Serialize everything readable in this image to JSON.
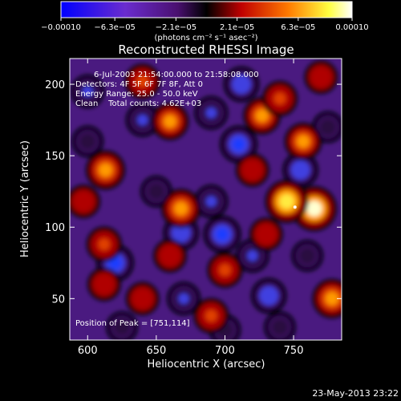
{
  "chart_data": {
    "type": "heatmap",
    "title": "Reconstructed RHESSI Image",
    "xlabel": "Heliocentric X (arcsec)",
    "ylabel": "Heliocentric Y (arcsec)",
    "xlim": [
      587,
      785
    ],
    "ylim": [
      21,
      218
    ],
    "xticks": [
      600,
      650,
      700,
      750
    ],
    "yticks": [
      50,
      100,
      150,
      200
    ],
    "colorbar": {
      "range": [
        -0.0001,
        0.0001
      ],
      "tick_values": [
        -0.0001,
        -6.3e-05,
        -2.1e-05,
        2.1e-05,
        6.3e-05,
        0.0001
      ],
      "tick_labels": [
        "−0.00010",
        "−6.3e−05",
        "−2.1e−05",
        "2.1e−05",
        "6.3e−05",
        "0.00010"
      ],
      "units": "(photons cm⁻² s⁻¹ asec⁻²)",
      "colors": [
        "#0000ff",
        "#7a1fa0",
        "#000000",
        "#c00000",
        "#ff8000",
        "#ffff60",
        "#ffffff"
      ]
    },
    "info_lines": [
      "6-Jul-2003 21:54:00.000 to 21:58:08.000",
      "Detectors: 4F 5F 6F 7F 8F, Att 0",
      "Energy Range: 25.0 - 50.0 keV",
      "Clean    Total counts: 4.62E+03"
    ],
    "peak_label": "Position of Peak = [751,114]",
    "peak_position": [
      751,
      114
    ],
    "bright_sources": [
      {
        "x": 765,
        "y": 113,
        "value": 0.0001
      },
      {
        "x": 745,
        "y": 118,
        "value": 9e-05
      },
      {
        "x": 668,
        "y": 113,
        "value": 7e-05
      },
      {
        "x": 613,
        "y": 140,
        "value": 7e-05
      },
      {
        "x": 778,
        "y": 50,
        "value": 7e-05
      },
      {
        "x": 757,
        "y": 160,
        "value": 6e-05
      },
      {
        "x": 727,
        "y": 178,
        "value": 6e-05
      },
      {
        "x": 660,
        "y": 174,
        "value": 6e-05
      },
      {
        "x": 700,
        "y": 70,
        "value": 5e-05
      },
      {
        "x": 740,
        "y": 190,
        "value": 5e-05
      },
      {
        "x": 612,
        "y": 88,
        "value": 5e-05
      },
      {
        "x": 690,
        "y": 38,
        "value": 5e-05
      },
      {
        "x": 640,
        "y": 202,
        "value": 5e-05
      },
      {
        "x": 720,
        "y": 140,
        "value": 4e-05
      },
      {
        "x": 640,
        "y": 50,
        "value": 4e-05
      },
      {
        "x": 770,
        "y": 205,
        "value": 4e-05
      },
      {
        "x": 597,
        "y": 118,
        "value": 4e-05
      },
      {
        "x": 612,
        "y": 60,
        "value": 4e-05
      },
      {
        "x": 660,
        "y": 80,
        "value": 4e-05
      },
      {
        "x": 730,
        "y": 95,
        "value": 4e-05
      }
    ],
    "dim_sources": [
      {
        "x": 710,
        "y": 158,
        "value": -6e-05
      },
      {
        "x": 698,
        "y": 95,
        "value": -6e-05
      },
      {
        "x": 620,
        "y": 75,
        "value": -6e-05
      },
      {
        "x": 668,
        "y": 96,
        "value": -5e-05
      },
      {
        "x": 712,
        "y": 200,
        "value": -5e-05
      },
      {
        "x": 755,
        "y": 140,
        "value": -5e-05
      },
      {
        "x": 732,
        "y": 52,
        "value": -5e-05
      },
      {
        "x": 690,
        "y": 118,
        "value": -4e-05
      },
      {
        "x": 640,
        "y": 175,
        "value": -4e-05
      },
      {
        "x": 670,
        "y": 50,
        "value": -4e-05
      },
      {
        "x": 720,
        "y": 80,
        "value": -4e-05
      },
      {
        "x": 600,
        "y": 195,
        "value": -4e-05
      },
      {
        "x": 690,
        "y": 180,
        "value": -4e-05
      },
      {
        "x": 700,
        "y": 28,
        "value": -3e-05
      },
      {
        "x": 650,
        "y": 125,
        "value": -3e-05
      },
      {
        "x": 600,
        "y": 160,
        "value": -3e-05
      },
      {
        "x": 760,
        "y": 80,
        "value": -3e-05
      },
      {
        "x": 740,
        "y": 30,
        "value": -3e-05
      },
      {
        "x": 625,
        "y": 30,
        "value": -3e-05
      },
      {
        "x": 775,
        "y": 170,
        "value": -3e-05
      }
    ]
  },
  "footer": {
    "timestamp": "23-May-2013 23:22"
  }
}
